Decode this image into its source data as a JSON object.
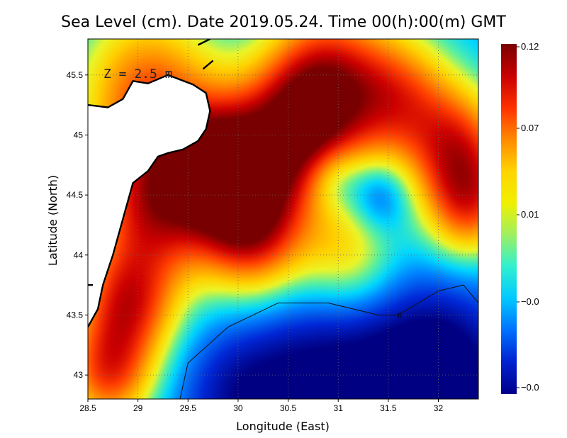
{
  "chart_data": {
    "type": "heatmap",
    "title": "Sea Level (cm). Date 2019.05.24. Time 00(h):00(m) GMT",
    "xlabel": "Longitude (East)",
    "ylabel": "Latitude (North)",
    "annotation": "Z = 2.5 m",
    "xlim": [
      28.5,
      32.4
    ],
    "ylim": [
      42.8,
      45.8
    ],
    "x_ticks": [
      {
        "value": 28.5,
        "label": "28.5"
      },
      {
        "value": 29,
        "label": "29"
      },
      {
        "value": 29.5,
        "label": "29.5"
      },
      {
        "value": 30,
        "label": "30"
      },
      {
        "value": 30.5,
        "label": "30.5"
      },
      {
        "value": 31,
        "label": "31"
      },
      {
        "value": 31.5,
        "label": "31.5"
      },
      {
        "value": 32,
        "label": "32"
      }
    ],
    "y_ticks": [
      {
        "value": 43,
        "label": "43"
      },
      {
        "value": 43.5,
        "label": "43.5"
      },
      {
        "value": 44,
        "label": "44"
      },
      {
        "value": 44.5,
        "label": "44.5"
      },
      {
        "value": 45,
        "label": "45"
      },
      {
        "value": 45.5,
        "label": "45.5"
      }
    ],
    "grid": true,
    "colorbar": {
      "labels": [
        "0.12",
        "0.07",
        "0.01",
        "−0.0",
        "−0.0"
      ],
      "colors": [
        "#7a0000",
        "#c80000",
        "#ff3000",
        "#ff8a00",
        "#ffd400",
        "#f0f000",
        "#9ef060",
        "#30f0d0",
        "#00c8ff",
        "#0070ff",
        "#0020d0",
        "#00008a"
      ]
    },
    "contour": {
      "level_label": "0",
      "points": [
        [
          29.42,
          42.8
        ],
        [
          29.5,
          43.1
        ],
        [
          29.9,
          43.4
        ],
        [
          30.4,
          43.6
        ],
        [
          30.9,
          43.6
        ],
        [
          31.4,
          43.5
        ],
        [
          31.6,
          43.5
        ],
        [
          32.0,
          43.7
        ],
        [
          32.25,
          43.75
        ],
        [
          32.4,
          43.6
        ]
      ]
    },
    "field": {
      "background": -0.005,
      "blobs": [
        {
          "lon": 29.85,
          "lat": 44.75,
          "amp": 0.125,
          "r": 0.55
        },
        {
          "lon": 30.65,
          "lat": 45.05,
          "amp": 0.125,
          "r": 0.6
        },
        {
          "lon": 30.15,
          "lat": 44.2,
          "amp": 0.105,
          "r": 0.55
        },
        {
          "lon": 29.15,
          "lat": 44.4,
          "amp": 0.095,
          "r": 0.6
        },
        {
          "lon": 29.1,
          "lat": 45.35,
          "amp": 0.085,
          "r": 0.7
        },
        {
          "lon": 30.9,
          "lat": 45.6,
          "amp": 0.07,
          "r": 0.6
        },
        {
          "lon": 31.6,
          "lat": 45.3,
          "amp": 0.08,
          "r": 0.55
        },
        {
          "lon": 32.2,
          "lat": 44.9,
          "amp": 0.085,
          "r": 0.5
        },
        {
          "lon": 32.3,
          "lat": 44.4,
          "amp": 0.08,
          "r": 0.45
        },
        {
          "lon": 28.9,
          "lat": 43.6,
          "amp": 0.095,
          "r": 0.5
        },
        {
          "lon": 28.7,
          "lat": 43.0,
          "amp": 0.085,
          "r": 0.45
        },
        {
          "lon": 31.1,
          "lat": 44.0,
          "amp": 0.05,
          "r": 0.5
        },
        {
          "lon": 30.9,
          "lat": 42.9,
          "amp": -0.05,
          "r": 0.85
        },
        {
          "lon": 32.0,
          "lat": 43.0,
          "amp": -0.06,
          "r": 0.7
        },
        {
          "lon": 30.0,
          "lat": 42.8,
          "amp": -0.03,
          "r": 0.6
        },
        {
          "lon": 31.4,
          "lat": 44.5,
          "amp": -0.035,
          "r": 0.3
        },
        {
          "lon": 30.95,
          "lat": 44.65,
          "amp": -0.035,
          "r": 0.3
        }
      ]
    },
    "coastline": [
      [
        [
          28.5,
          45.25
        ],
        [
          28.7,
          45.23
        ],
        [
          28.85,
          45.3
        ],
        [
          28.95,
          45.45
        ],
        [
          29.1,
          45.43
        ],
        [
          29.3,
          45.5
        ],
        [
          29.55,
          45.42
        ],
        [
          29.68,
          45.35
        ],
        [
          29.72,
          45.2
        ],
        [
          29.68,
          45.05
        ],
        [
          29.6,
          44.95
        ],
        [
          29.45,
          44.88
        ],
        [
          29.3,
          44.85
        ],
        [
          29.2,
          44.82
        ],
        [
          29.1,
          44.7
        ],
        [
          28.95,
          44.6
        ],
        [
          28.85,
          44.3
        ],
        [
          28.75,
          44.0
        ],
        [
          28.65,
          43.75
        ],
        [
          28.6,
          43.55
        ],
        [
          28.5,
          43.4
        ]
      ],
      [
        [
          29.6,
          45.75
        ],
        [
          29.72,
          45.8
        ]
      ],
      [
        [
          29.65,
          45.55
        ],
        [
          29.75,
          45.62
        ]
      ],
      [
        [
          28.5,
          43.75
        ],
        [
          28.55,
          43.75
        ]
      ]
    ]
  }
}
